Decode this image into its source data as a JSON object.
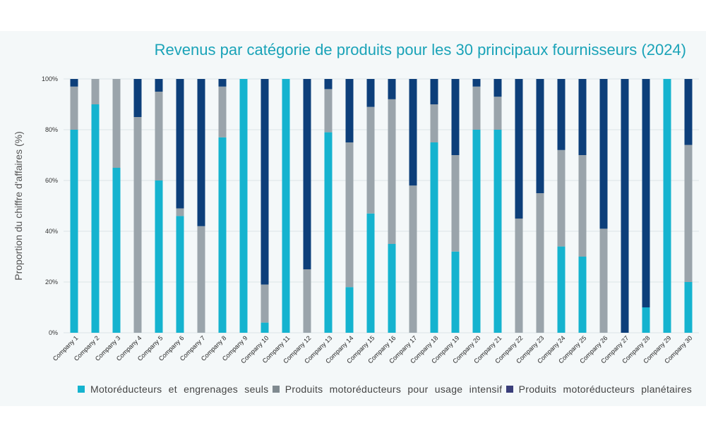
{
  "chart_data": {
    "type": "bar",
    "stacked": true,
    "title": "Revenus par catégorie de produits pour les 30 principaux fournisseurs (2024)",
    "ylabel": "Proportion du chiffre d'affaires (%)",
    "xlabel": "",
    "ylim": [
      0,
      100
    ],
    "yticks": [
      "0%",
      "20%",
      "40%",
      "60%",
      "80%",
      "100%"
    ],
    "grid": true,
    "legend_position": "bottom",
    "categories": [
      "Company 1",
      "Company 2",
      "Company 3",
      "Company 4",
      "Company 5",
      "Company 6",
      "Company 7",
      "Company 8",
      "Company 9",
      "Company 10",
      "Company 11",
      "Company 12",
      "Company 13",
      "Company 14",
      "Company 15",
      "Company 16",
      "Company 17",
      "Company 18",
      "Company 19",
      "Company 20",
      "Company 21",
      "Company 22",
      "Company 23",
      "Company 24",
      "Company 25",
      "Company 26",
      "Company 27",
      "Company 28",
      "Company 29",
      "Company 30"
    ],
    "series": [
      {
        "name": "Motoréducteurs et engrenages seuls",
        "color": "#15b3cf",
        "values": [
          80,
          90,
          65,
          0,
          60,
          46,
          0,
          77,
          100,
          4,
          100,
          0,
          79,
          18,
          47,
          35,
          0,
          75,
          32,
          80,
          80,
          0,
          0,
          34,
          30,
          0,
          0,
          10,
          100,
          20
        ]
      },
      {
        "name": "Produits motoréducteurs pour usage intensif",
        "color": "#9aa4ab",
        "values": [
          17,
          10,
          35,
          85,
          35,
          3,
          42,
          20,
          0,
          15,
          0,
          25,
          17,
          57,
          42,
          57,
          58,
          15,
          38,
          17,
          13,
          45,
          55,
          38,
          40,
          41,
          0,
          0,
          0,
          54
        ]
      },
      {
        "name": "Produits motoréducteurs planétaires",
        "color": "#0d3f7a",
        "values": [
          3,
          0,
          0,
          15,
          5,
          51,
          58,
          3,
          0,
          81,
          0,
          75,
          4,
          25,
          11,
          8,
          42,
          10,
          30,
          3,
          7,
          55,
          45,
          28,
          30,
          59,
          100,
          90,
          0,
          26
        ]
      }
    ]
  }
}
